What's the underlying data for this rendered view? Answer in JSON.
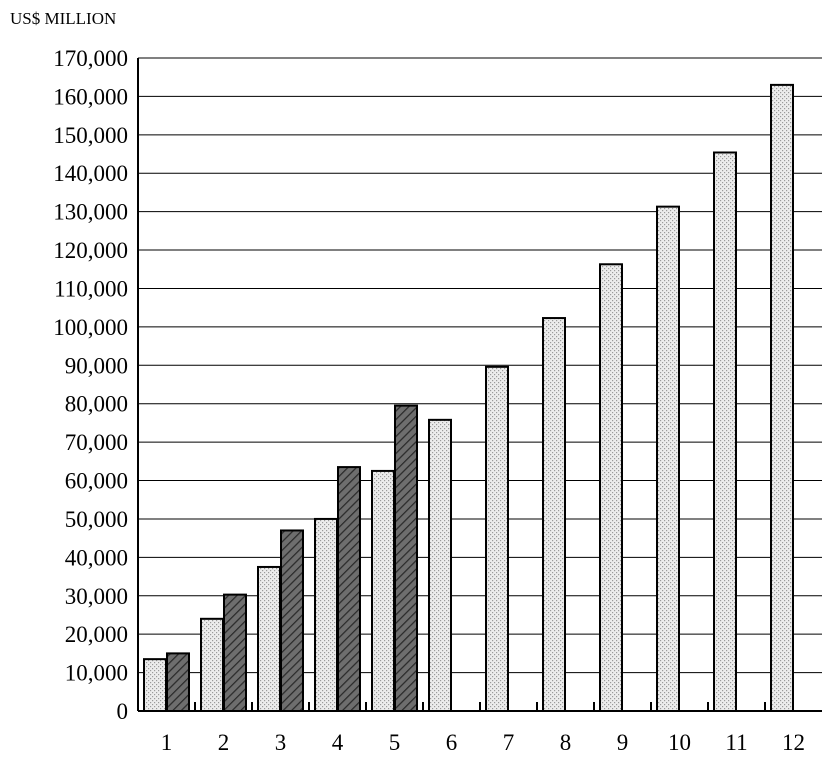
{
  "chart_data": {
    "type": "bar",
    "title": "",
    "unit_label": "US$ MILLION",
    "xlabel": "",
    "ylabel": "",
    "categories": [
      "1",
      "2",
      "3",
      "4",
      "5",
      "6",
      "7",
      "8",
      "9",
      "10",
      "11",
      "12"
    ],
    "ylim": [
      0,
      170000
    ],
    "y_ticks": [
      0,
      10000,
      20000,
      30000,
      40000,
      50000,
      60000,
      70000,
      80000,
      90000,
      100000,
      110000,
      120000,
      130000,
      140000,
      150000,
      160000,
      170000
    ],
    "y_tick_labels": [
      "0",
      "10,000",
      "20,000",
      "30,000",
      "40,000",
      "50,000",
      "60,000",
      "70,000",
      "80,000",
      "90,000",
      "100,000",
      "110,000",
      "120,000",
      "130,000",
      "140,000",
      "150,000",
      "160,000",
      "170,000"
    ],
    "grid": true,
    "series": [
      {
        "pattern": "light-dotted",
        "fill": "#e6e6e6",
        "values": [
          13500,
          24000,
          37500,
          50000,
          62500,
          75800,
          89600,
          102300,
          116300,
          131300,
          145400,
          163000
        ]
      },
      {
        "pattern": "dark-hatched",
        "fill": "#555555",
        "values": [
          15000,
          30300,
          47000,
          63500,
          79500,
          null,
          null,
          null,
          null,
          null,
          null,
          null
        ]
      }
    ]
  }
}
